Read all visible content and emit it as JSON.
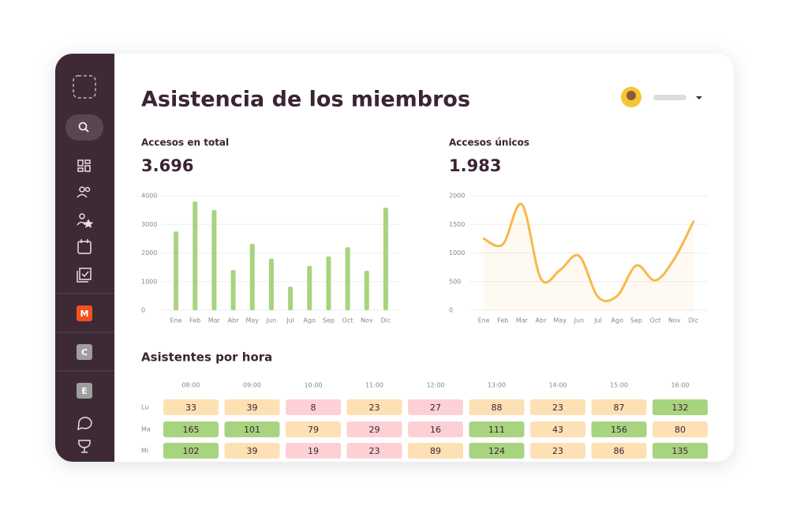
{
  "header": {
    "title": "Asistencia de los miembros"
  },
  "sidebar": {
    "badges": [
      "M",
      "C",
      "E"
    ]
  },
  "chart_data": [
    {
      "type": "bar",
      "title": "Accesos en total",
      "subtitle": "3.696",
      "categories": [
        "Ene",
        "Feb",
        "Mar",
        "Abr",
        "May",
        "Jun",
        "Jul",
        "Ago",
        "Sep",
        "Oct",
        "Nov",
        "Dic"
      ],
      "values": [
        2750,
        3800,
        3500,
        1400,
        2320,
        1800,
        820,
        1550,
        1880,
        2200,
        1380,
        3580
      ],
      "color": "#a8d37f",
      "ylim": [
        0,
        4000
      ],
      "yticks": [
        0,
        1000,
        2000,
        3000,
        4000
      ],
      "grid": true
    },
    {
      "type": "line",
      "title": "Accesos únicos",
      "subtitle": "1.983",
      "categories": [
        "Ene",
        "Feb",
        "Mar",
        "Abr",
        "May",
        "Jun",
        "Jul",
        "Ago",
        "Sep",
        "Oct",
        "Nov",
        "Dic"
      ],
      "values": [
        1250,
        1150,
        1850,
        550,
        700,
        950,
        230,
        250,
        780,
        520,
        900,
        1550
      ],
      "color": "#f7b84b",
      "ylim": [
        0,
        2000
      ],
      "yticks": [
        0,
        500,
        1000,
        1500,
        2000
      ],
      "grid": true
    }
  ],
  "heatmap": {
    "title": "Asistentes por hora",
    "columns": [
      "08:00",
      "09:00",
      "10:00",
      "11:00",
      "12:00",
      "13:00",
      "14:00",
      "15:00",
      "16:00"
    ],
    "rows": [
      {
        "label": "Lu",
        "values": [
          33,
          39,
          8,
          23,
          27,
          88,
          23,
          87,
          132
        ],
        "colors": [
          "#fde0b3",
          "#fde0b3",
          "#fdd0d6",
          "#fde0b3",
          "#fdd0d6",
          "#fde0b3",
          "#fde0b3",
          "#fde0b3",
          "#a8d37f"
        ]
      },
      {
        "label": "Ma",
        "values": [
          165,
          101,
          79,
          29,
          16,
          111,
          43,
          156,
          80
        ],
        "colors": [
          "#a8d37f",
          "#a8d37f",
          "#fde0b3",
          "#fdd0d6",
          "#fdd0d6",
          "#a8d37f",
          "#fde0b3",
          "#a8d37f",
          "#fde0b3"
        ]
      },
      {
        "label": "Mi",
        "values": [
          102,
          39,
          19,
          23,
          89,
          124,
          23,
          86,
          135
        ],
        "colors": [
          "#a8d37f",
          "#fde0b3",
          "#fdd0d6",
          "#fdd0d6",
          "#fde0b3",
          "#a8d37f",
          "#fde0b3",
          "#fde0b3",
          "#a8d37f"
        ]
      }
    ]
  }
}
